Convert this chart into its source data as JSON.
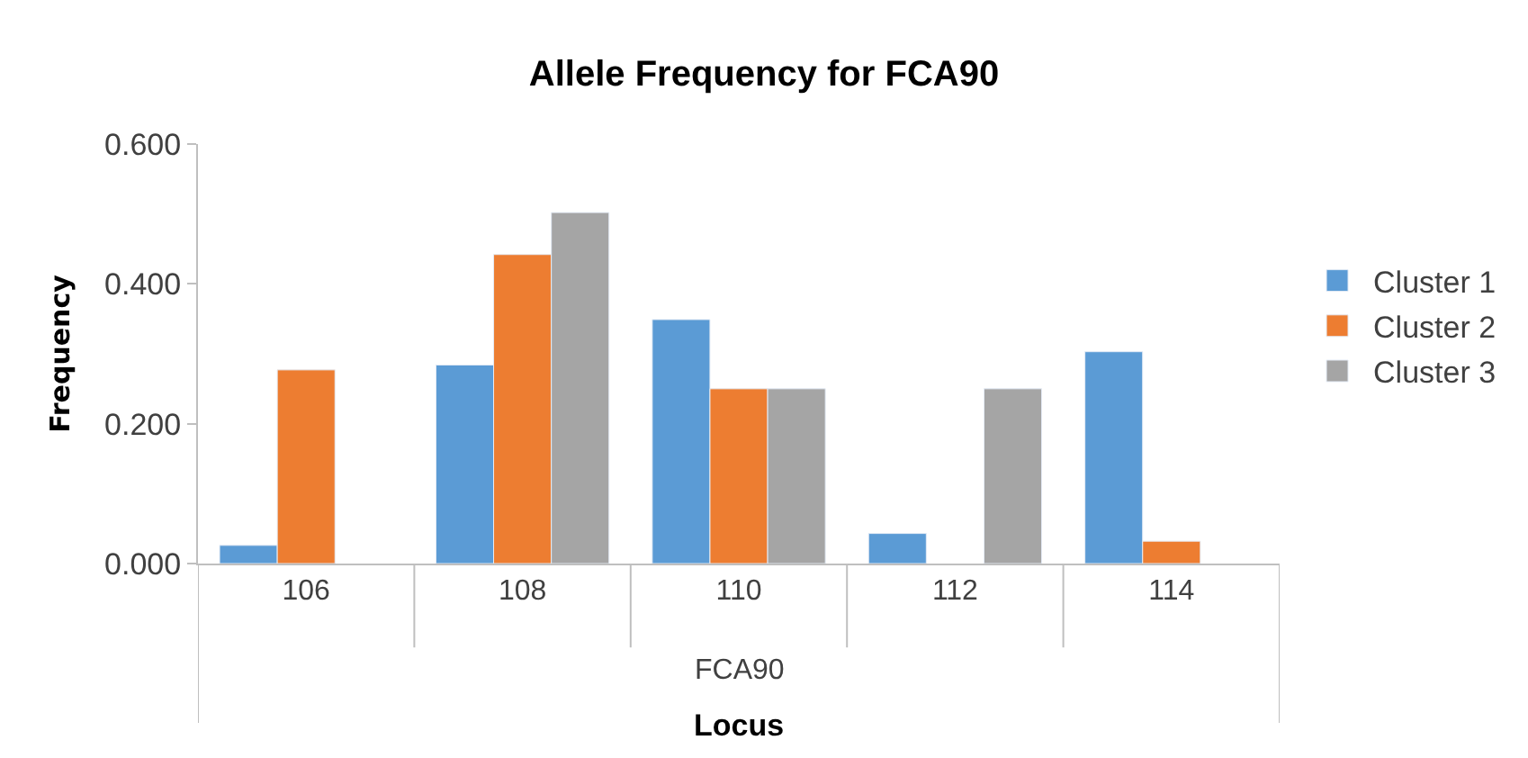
{
  "chart_data": {
    "type": "bar",
    "title": "Allele Frequency for FCA90",
    "xlabel": "Locus",
    "ylabel": "Frequency",
    "categories": [
      "106",
      "108",
      "110",
      "112",
      "114"
    ],
    "series": [
      {
        "name": "Cluster 1",
        "color": "#5b9bd5",
        "values": [
          0.026,
          0.284,
          0.349,
          0.043,
          0.303
        ]
      },
      {
        "name": "Cluster 2",
        "color": "#ed7d31",
        "values": [
          0.277,
          0.442,
          0.25,
          null,
          0.032
        ]
      },
      {
        "name": "Cluster 3",
        "color": "#a5a5a5",
        "values": [
          null,
          0.502,
          0.25,
          0.25,
          null
        ]
      }
    ],
    "annotations": [
      "FCA90"
    ],
    "ylim": [
      0,
      0.6
    ],
    "yticks": [
      {
        "value": 0,
        "label": "0.000"
      },
      {
        "value": 0.2,
        "label": "0.200"
      },
      {
        "value": 0.4,
        "label": "0.400"
      },
      {
        "value": 0.6,
        "label": "0.600"
      }
    ],
    "legend": "right"
  }
}
